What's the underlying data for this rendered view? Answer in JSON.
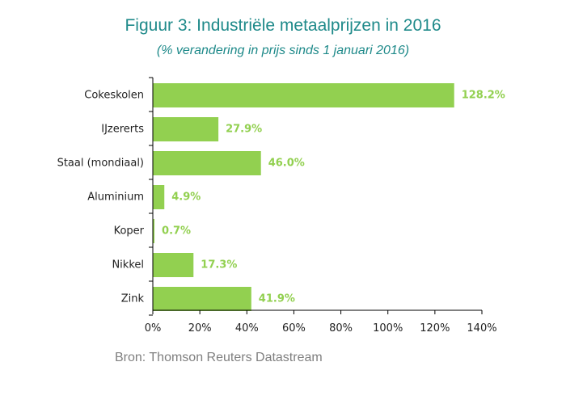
{
  "chart_data": {
    "type": "bar",
    "orientation": "horizontal",
    "title": "Figuur 3: Industriële metaalprijzen in 2016",
    "subtitle": "(% verandering in prijs sinds 1 januari 2016)",
    "categories": [
      "Cokeskolen",
      "IJzererts",
      "Staal (mondiaal)",
      "Aluminium",
      "Koper",
      "Nikkel",
      "Zink"
    ],
    "values": [
      128.2,
      27.9,
      46.0,
      4.9,
      0.7,
      17.3,
      41.9
    ],
    "data_labels": [
      "128.2%",
      "27.9%",
      "46.0%",
      "4.9%",
      "0.7%",
      "17.3%",
      "41.9%"
    ],
    "xlim": [
      0,
      140
    ],
    "x_ticks": [
      0,
      20,
      40,
      60,
      80,
      100,
      120,
      140
    ],
    "x_tick_labels": [
      "0%",
      "20%",
      "40%",
      "60%",
      "80%",
      "100%",
      "120%",
      "140%"
    ],
    "grid": false,
    "bar_color": "#92d050",
    "label_color": "#92d050"
  },
  "source": "Bron: Thomson Reuters Datastream"
}
